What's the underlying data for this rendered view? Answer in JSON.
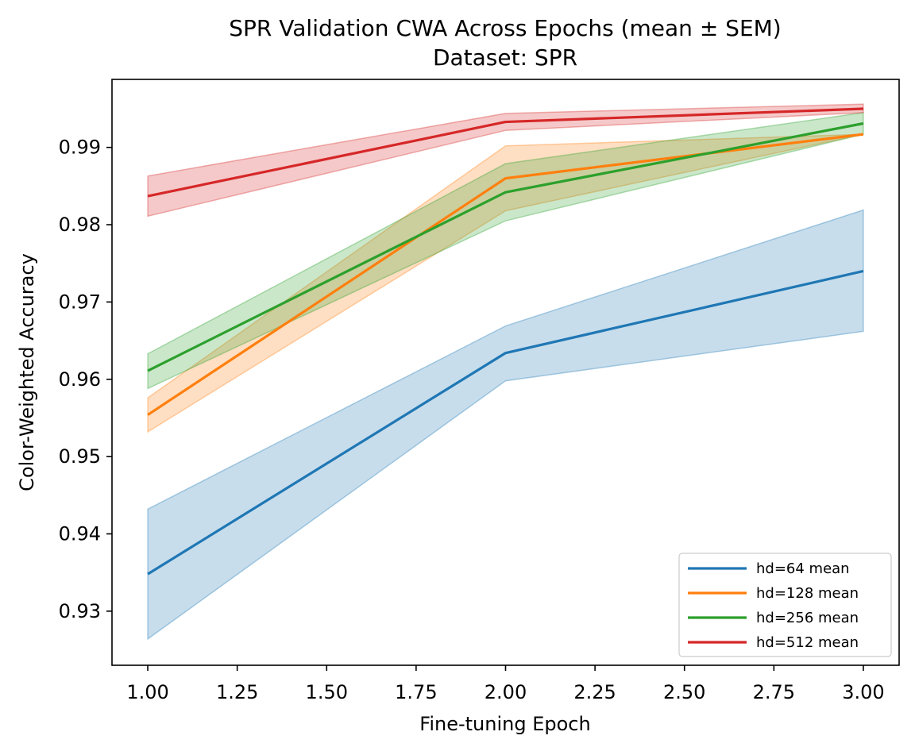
{
  "chart_data": {
    "type": "line",
    "title": "SPR Validation CWA Across Epochs (mean ± SEM)",
    "subtitle": "Dataset: SPR",
    "xlabel": "Fine-tuning Epoch",
    "ylabel": "Color-Weighted Accuracy",
    "xlim": [
      0.9,
      3.1
    ],
    "ylim": [
      0.923,
      0.9988
    ],
    "x_ticks": [
      1.0,
      1.25,
      1.5,
      1.75,
      2.0,
      2.25,
      2.5,
      2.75,
      3.0
    ],
    "x_tick_labels": [
      "1.00",
      "1.25",
      "1.50",
      "1.75",
      "2.00",
      "2.25",
      "2.50",
      "2.75",
      "3.00"
    ],
    "y_ticks": [
      0.93,
      0.94,
      0.95,
      0.96,
      0.97,
      0.98,
      0.99
    ],
    "y_tick_labels": [
      "0.93",
      "0.94",
      "0.95",
      "0.96",
      "0.97",
      "0.98",
      "0.99"
    ],
    "grid": false,
    "legend_position": "lower-right",
    "x": [
      1,
      2,
      3
    ],
    "series": [
      {
        "name": "hd=64 mean",
        "color": "#1f77b4",
        "values": [
          0.9348,
          0.9634,
          0.974
        ],
        "lower": [
          0.9264,
          0.9598,
          0.9662
        ],
        "upper": [
          0.9432,
          0.9669,
          0.9819
        ]
      },
      {
        "name": "hd=128 mean",
        "color": "#ff7f0e",
        "values": [
          0.9554,
          0.986,
          0.9917
        ],
        "lower": [
          0.9532,
          0.9818,
          0.9917
        ],
        "upper": [
          0.9576,
          0.9902,
          0.9917
        ]
      },
      {
        "name": "hd=256 mean",
        "color": "#2ca02c",
        "values": [
          0.9611,
          0.9842,
          0.9931
        ],
        "lower": [
          0.9588,
          0.9805,
          0.9917
        ],
        "upper": [
          0.9633,
          0.9879,
          0.9945
        ]
      },
      {
        "name": "hd=512 mean",
        "color": "#d62728",
        "values": [
          0.9837,
          0.9933,
          0.995
        ],
        "lower": [
          0.9811,
          0.9922,
          0.9945
        ],
        "upper": [
          0.9863,
          0.9944,
          0.9956
        ]
      }
    ]
  }
}
